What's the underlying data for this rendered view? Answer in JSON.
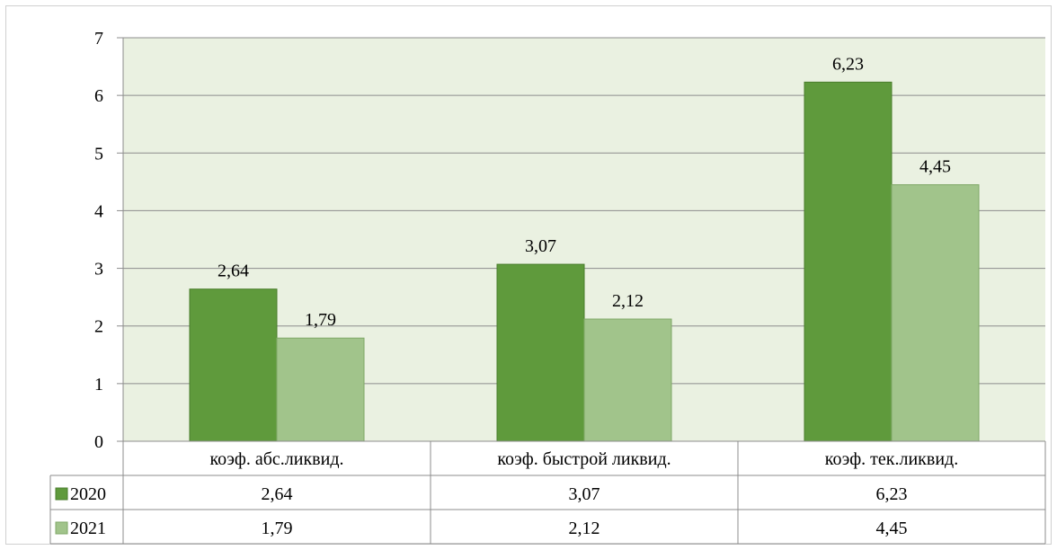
{
  "chart_data": {
    "type": "bar",
    "categories": [
      "коэф. абс.ликвид.",
      "коэф. быстрой ликвид.",
      "коэф. тек.ликвид."
    ],
    "series": [
      {
        "name": "2020",
        "values": [
          2.64,
          3.07,
          6.23
        ],
        "labels": [
          "2,64",
          "3,07",
          "6,23"
        ],
        "color": "#5f9a3c"
      },
      {
        "name": "2021",
        "values": [
          1.79,
          2.12,
          4.45
        ],
        "labels": [
          "1,79",
          "2,12",
          "4,45"
        ],
        "color": "#a1c48b"
      }
    ],
    "ylim": [
      0,
      7
    ],
    "yticks": [
      "0",
      "1",
      "2",
      "3",
      "4",
      "5",
      "6",
      "7"
    ],
    "grid": true,
    "plot_background": "#eaf1e1",
    "legend": "data-table"
  }
}
